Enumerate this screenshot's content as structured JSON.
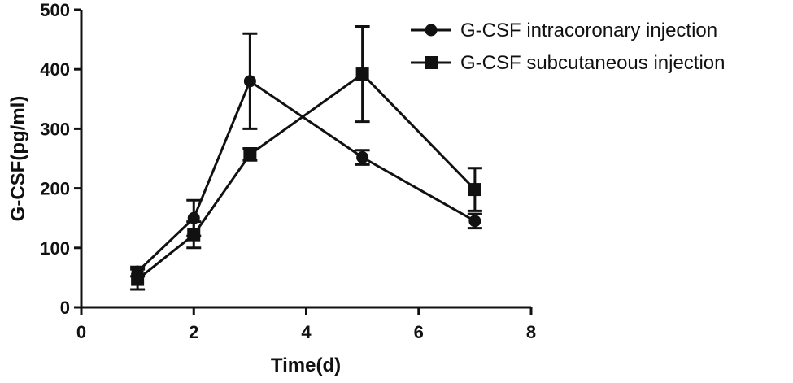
{
  "chart_data": {
    "type": "line",
    "xlabel": "Time(d)",
    "ylabel": "G-CSF(pg/ml)",
    "xlim": [
      0,
      8
    ],
    "ylim": [
      0,
      500
    ],
    "xticks": [
      0,
      2,
      4,
      6,
      8
    ],
    "yticks": [
      0,
      100,
      200,
      300,
      400,
      500
    ],
    "grid": false,
    "legend_position": "top-right",
    "series": [
      {
        "name": "G-CSF intracoronary injection",
        "marker": "circle",
        "color": "#111111",
        "x": [
          1,
          2,
          3,
          5,
          7
        ],
        "y": [
          60,
          150,
          380,
          252,
          145
        ],
        "error": [
          8,
          30,
          80,
          12,
          12
        ]
      },
      {
        "name": "G-CSF subcutaneous injection",
        "marker": "square",
        "color": "#111111",
        "x": [
          1,
          2,
          3,
          5,
          7
        ],
        "y": [
          47,
          122,
          257,
          392,
          198
        ],
        "error": [
          17,
          22,
          10,
          80,
          36
        ]
      }
    ]
  }
}
